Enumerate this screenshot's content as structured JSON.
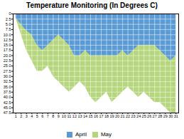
{
  "chart_data": {
    "type": "area",
    "title": "Temperature Monitoring (In Degrees C)",
    "x": [
      1,
      2,
      3,
      4,
      5,
      6,
      7,
      8,
      9,
      10,
      11,
      12,
      13,
      14,
      15,
      16,
      17,
      18,
      19,
      20,
      21,
      22,
      23,
      24,
      25,
      26,
      27,
      28,
      29,
      30,
      31
    ],
    "series": [
      {
        "name": "April",
        "color": "#5B9BD5",
        "values": [
          2.0,
          5.0,
          8.0,
          10.0,
          15.0,
          17.5,
          15.0,
          12.5,
          10.0,
          12.5,
          15.0,
          20.0,
          20.0,
          17.5,
          20.0,
          20.0,
          20.0,
          20.0,
          20.0,
          20.0,
          17.5,
          20.0,
          17.5,
          15.0,
          15.0,
          15.0,
          15.0,
          17.5,
          20.0,
          22.5,
          20.0
        ]
      },
      {
        "name": "May",
        "color": "#B5D67C",
        "values": [
          2.0,
          10.0,
          17.5,
          22.5,
          27.5,
          27.5,
          25.0,
          30.0,
          32.5,
          35.0,
          37.5,
          35.0,
          32.5,
          35.0,
          40.0,
          42.5,
          40.0,
          37.5,
          42.5,
          40.0,
          37.5,
          35.0,
          37.5,
          40.0,
          37.5,
          40.0,
          42.5,
          42.5,
          45.0,
          47.5,
          47.5
        ]
      }
    ],
    "xlim": [
      0.5,
      31.5
    ],
    "xticks": [
      1,
      2,
      3,
      4,
      5,
      6,
      7,
      8,
      9,
      10,
      11,
      12,
      13,
      14,
      15,
      16,
      17,
      18,
      19,
      20,
      21,
      22,
      23,
      24,
      25,
      26,
      27,
      28,
      29,
      30,
      31
    ],
    "ylim": [
      47.5,
      0
    ],
    "yticks": [
      0,
      2.5,
      {
        "value": 5,
        "label": "5.0"
      },
      7.5,
      {
        "value": 10,
        "label": "10.0"
      },
      12.5,
      {
        "value": 15,
        "label": "15.0"
      },
      17.5,
      {
        "value": 20,
        "label": "20.0"
      },
      22.5,
      {
        "value": 25,
        "label": "25.0"
      },
      27.5,
      {
        "value": 30,
        "label": "30.0"
      },
      32.5,
      {
        "value": 35,
        "label": "35.0"
      },
      37.5,
      {
        "value": 40,
        "label": "40.0"
      },
      42.5,
      {
        "value": 45,
        "label": "45.0"
      },
      47.5
    ],
    "grid": true,
    "legend": "bottom"
  }
}
